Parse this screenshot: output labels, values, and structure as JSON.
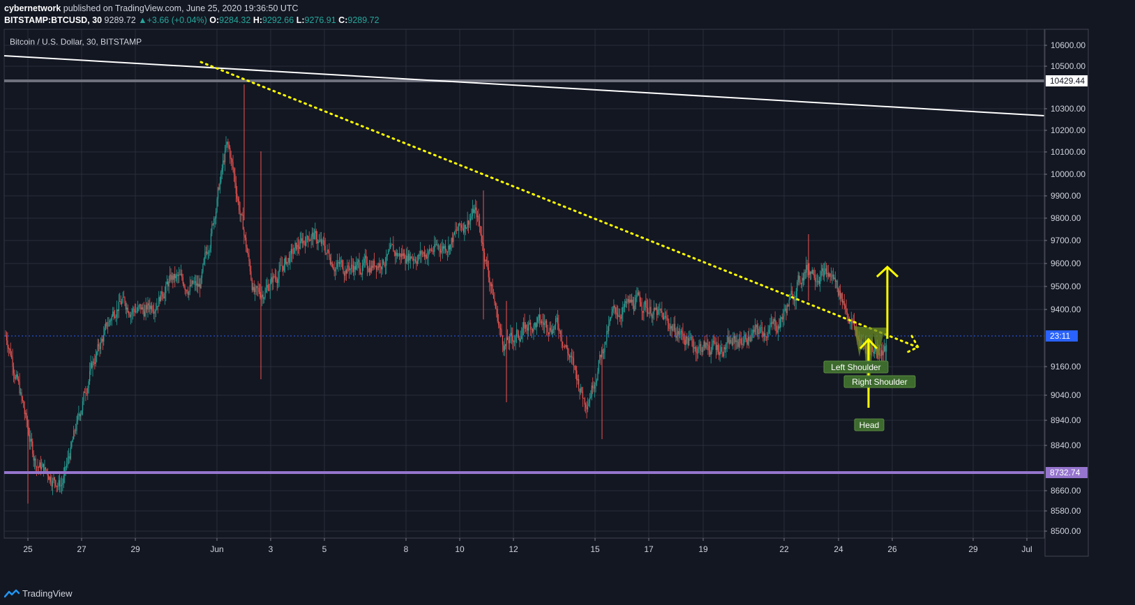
{
  "header": {
    "author": "cybernetwork",
    "published_text": "published on TradingView.com, June 25, 2020 19:36:50 UTC",
    "symbol": "BITSTAMP:BTCUSD, 30",
    "last": "9289.72",
    "change": "+3.66 (+0.04%)",
    "o_label": "O:",
    "o_value": "9284.32",
    "h_label": "H:",
    "h_value": "9292.66",
    "l_label": "L:",
    "l_value": "9276.91",
    "c_label": "C:",
    "c_value": "9289.72"
  },
  "footer": {
    "brand": "TradingView"
  },
  "colors": {
    "background": "#131722",
    "grid": "#2a2e39",
    "up": "#26a69a",
    "down": "#ef5350",
    "yellow": "#ffff00",
    "purple": "#9575cd",
    "label_green": "#3d6b2e"
  },
  "chart_data": {
    "type": "candlestick",
    "title": "Bitcoin / U.S. Dollar, 30, BITSTAMP",
    "y_ticks": [
      "10600.00",
      "10500.00",
      "10429.44",
      "10300.00",
      "10200.00",
      "10100.00",
      "10000.00",
      "9900.00",
      "9800.00",
      "9700.00",
      "9600.00",
      "9500.00",
      "9400.00",
      "23:11",
      "9160.00",
      "9040.00",
      "8940.00",
      "8840.00",
      "8732.74",
      "8660.00",
      "8580.00",
      "8500.00"
    ],
    "x_ticks": [
      "25",
      "27",
      "29",
      "Jun",
      "3",
      "5",
      "8",
      "10",
      "12",
      "15",
      "17",
      "19",
      "22",
      "24",
      "26",
      "29",
      "Jul"
    ],
    "price_points": [
      [
        "25",
        9350
      ],
      [
        "26",
        8800
      ],
      [
        "27",
        8700
      ],
      [
        "28",
        9200
      ],
      [
        "29",
        9500
      ],
      [
        "30",
        9450
      ],
      [
        "31",
        9600
      ],
      [
        "Jun 1",
        9550
      ],
      [
        "Jun 2",
        10200
      ],
      [
        "Jun 3",
        9500
      ],
      [
        "Jun 4",
        9650
      ],
      [
        "Jun 5",
        9800
      ],
      [
        "Jun 6",
        9650
      ],
      [
        "Jun 7",
        9650
      ],
      [
        "Jun 8",
        9700
      ],
      [
        "Jun 9",
        9700
      ],
      [
        "Jun 10",
        9750
      ],
      [
        "Jun 11",
        9900
      ],
      [
        "Jun 12",
        9300
      ],
      [
        "Jun 13",
        9400
      ],
      [
        "Jun 14",
        9400
      ],
      [
        "Jun 15",
        9050
      ],
      [
        "Jun 16",
        9450
      ],
      [
        "Jun 17",
        9500
      ],
      [
        "Jun 18",
        9400
      ],
      [
        "Jun 19",
        9300
      ],
      [
        "Jun 20",
        9300
      ],
      [
        "Jun 21",
        9350
      ],
      [
        "Jun 22",
        9400
      ],
      [
        "Jun 23",
        9650
      ],
      [
        "Jun 24",
        9600
      ],
      [
        "Jun 25",
        9300
      ],
      [
        "Jun 26",
        9290
      ]
    ],
    "horizontal_levels": [
      {
        "label": "10429.44",
        "price": 10429.44,
        "color": "#787b86"
      },
      {
        "label": "8732.74",
        "price": 8732.74,
        "color": "#9575cd"
      }
    ],
    "annotations": [
      {
        "text": "Left Shoulder"
      },
      {
        "text": "Right Shoulder"
      },
      {
        "text": "Head"
      }
    ],
    "current_price_label": "23:11",
    "grid": true
  }
}
